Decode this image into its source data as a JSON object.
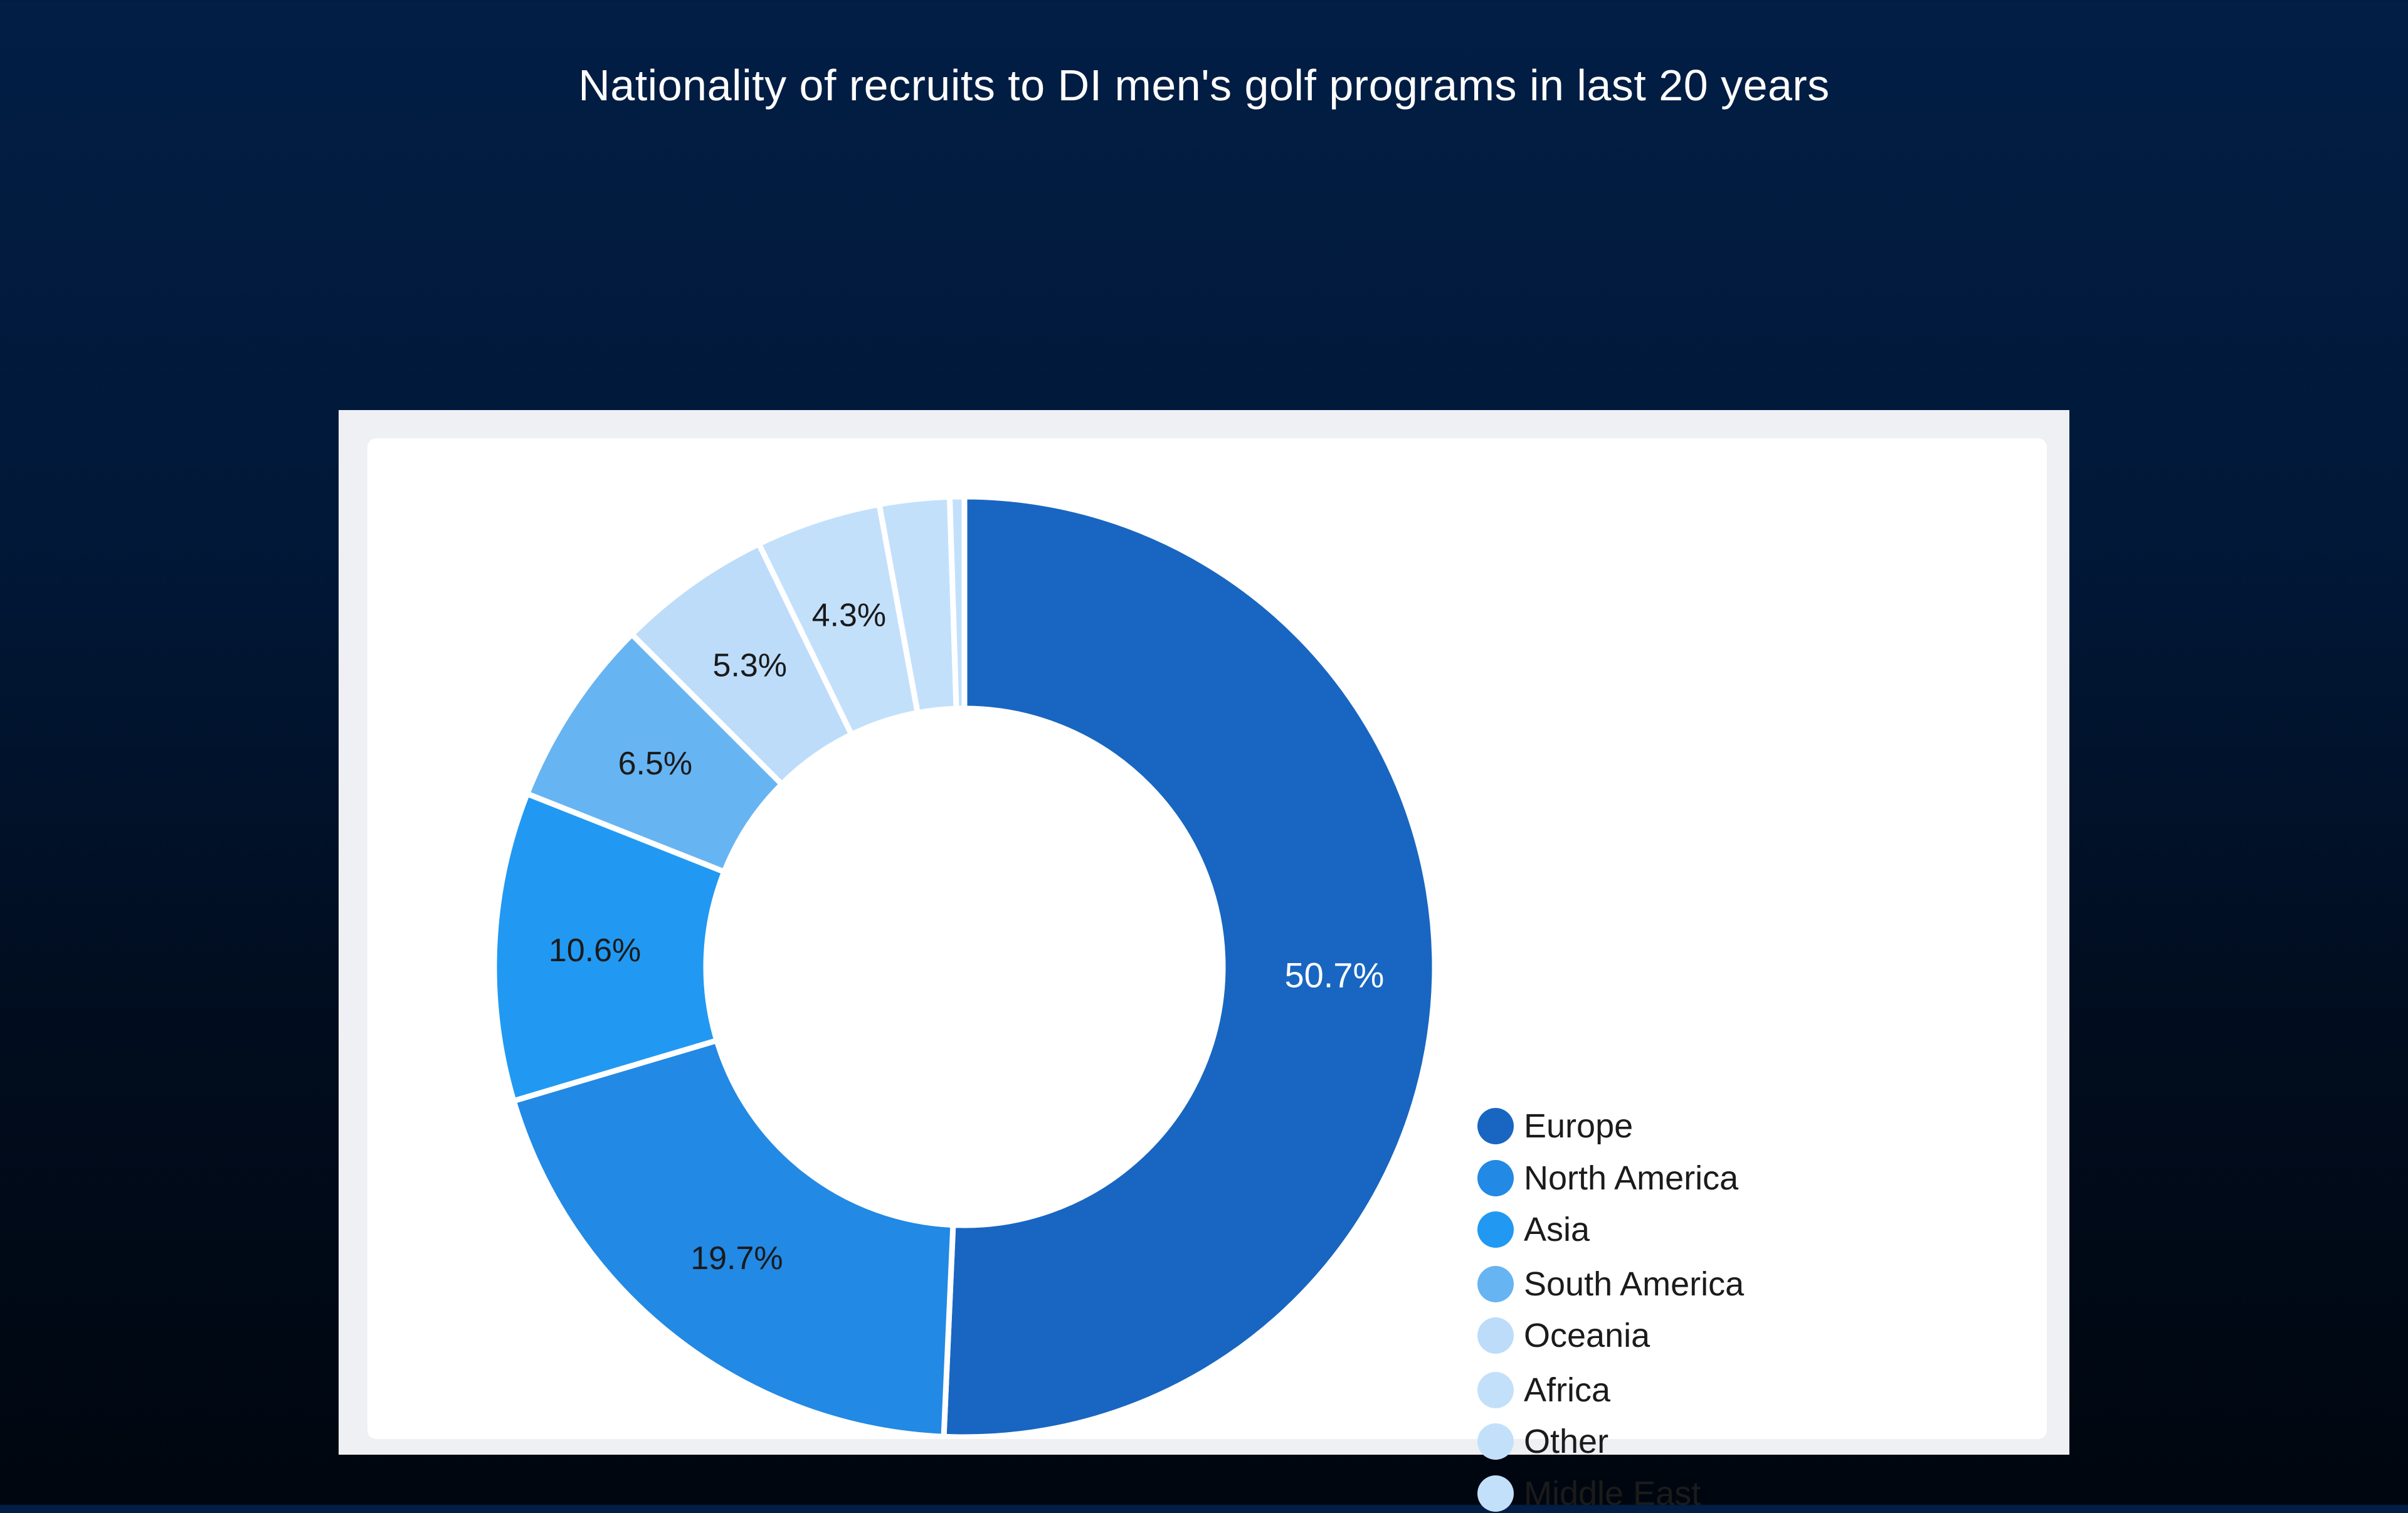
{
  "page": {
    "title": "Nationality of recruits to DI men's golf programs in last 20 years"
  },
  "chart_data": {
    "type": "pie",
    "title": "Nationality of recruits to DI men's golf programs in last 20 years",
    "style": "donut",
    "categories": [
      "Europe",
      "North America",
      "Asia",
      "South America",
      "Oceania",
      "Africa",
      "Other",
      "Middle East"
    ],
    "values": [
      50.7,
      19.7,
      10.6,
      6.5,
      5.3,
      4.3,
      2.4,
      0.5
    ],
    "data_labels": [
      "50.7%",
      "19.7%",
      "10.6%",
      "6.5%",
      "5.3%",
      "4.3%",
      "",
      ""
    ],
    "colors": [
      "#1866c1",
      "#2289e4",
      "#2199f2",
      "#67b4f2",
      "#bcdcfa",
      "#c3e0fb",
      "#c3e0fb",
      "#c3e0fb"
    ],
    "legend_position": "right",
    "start_angle": "top, clockwise"
  }
}
